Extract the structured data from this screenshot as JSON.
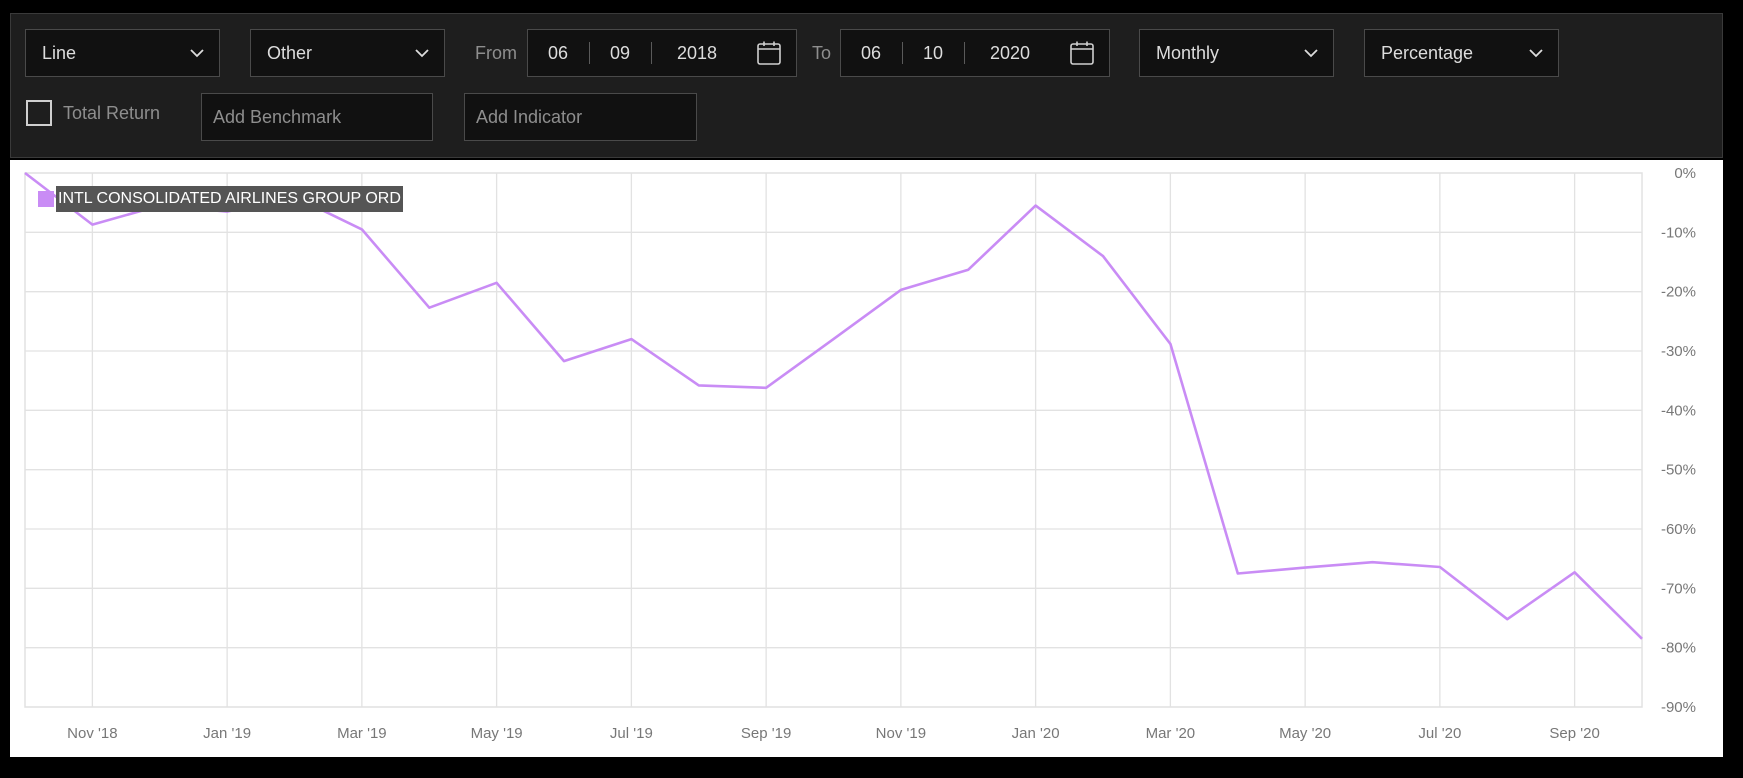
{
  "toolbar": {
    "chart_type": "Line",
    "category": "Other",
    "from_label": "From",
    "from_date": {
      "month": "06",
      "day": "09",
      "year": "2018"
    },
    "to_label": "To",
    "to_date": {
      "month": "06",
      "day": "10",
      "year": "2020"
    },
    "frequency": "Monthly",
    "scale": "Percentage",
    "total_return_label": "Total Return",
    "benchmark_placeholder": "Add Benchmark",
    "indicator_placeholder": "Add Indicator",
    "icons": {
      "dropdown": "chevron-down-icon",
      "calendar": "calendar-icon"
    }
  },
  "colors": {
    "series": "#c98cf5",
    "toolbar_bg": "#1e1e1e",
    "grid": "#e2e2e2"
  },
  "chart_data": {
    "type": "line",
    "title": "",
    "xlabel": "",
    "ylabel": "",
    "x_ticks": [
      "Nov '18",
      "Jan '19",
      "Mar '19",
      "May '19",
      "Jul '19",
      "Sep '19",
      "Nov '19",
      "Jan '20",
      "Mar '20",
      "May '20",
      "Jul '20",
      "Sep '20"
    ],
    "y_ticks": [
      "0%",
      "-10%",
      "-20%",
      "-30%",
      "-40%",
      "-50%",
      "-60%",
      "-70%",
      "-80%",
      "-90%"
    ],
    "ylim": [
      -90,
      0
    ],
    "x": [
      "Oct '18",
      "Nov '18",
      "Dec '18",
      "Jan '19",
      "Feb '19",
      "Mar '19",
      "Apr '19",
      "May '19",
      "Jun '19",
      "Jul '19",
      "Aug '19",
      "Sep '19",
      "Oct '19",
      "Nov '19",
      "Dec '19",
      "Jan '20",
      "Feb '20",
      "Mar '20",
      "Apr '20",
      "May '20",
      "Jun '20",
      "Jul '20",
      "Aug '20",
      "Sep '20",
      "Oct '20"
    ],
    "legend_position": "top-left",
    "grid": true,
    "series": [
      {
        "name": "INTL CONSOLIDATED AIRLINES GROUP ORD",
        "color": "#c98cf5",
        "values": [
          0,
          -8.7,
          -5.5,
          -6.5,
          -4,
          -9.5,
          -22.7,
          -18.5,
          -31.7,
          -28,
          -35.8,
          -36.2,
          -28,
          -19.7,
          -16.3,
          -5.5,
          -14,
          -28.8,
          -67.5,
          -66.5,
          -65.6,
          -66.4,
          -75.2,
          -67.3,
          -78.5
        ]
      }
    ]
  }
}
